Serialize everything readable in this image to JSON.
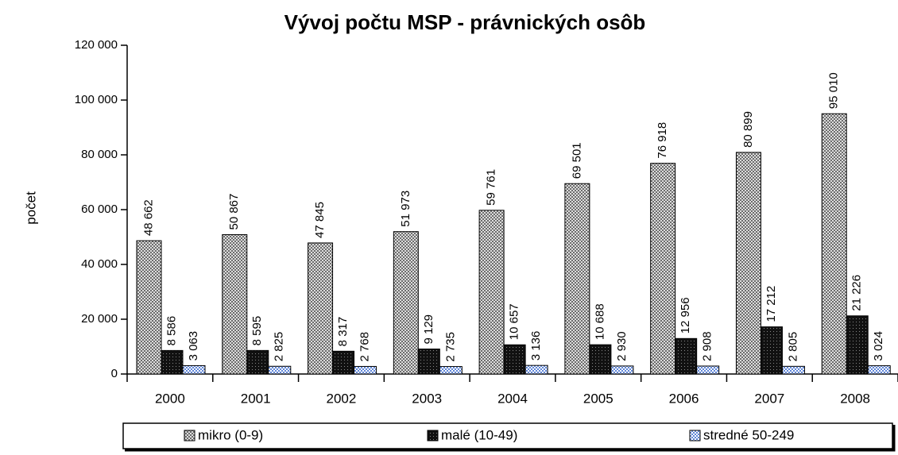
{
  "chart_data": {
    "type": "bar",
    "title": "Vývoj počtu MSP - právnických osôb",
    "y_label": "počet",
    "categories": [
      "2000",
      "2001",
      "2002",
      "2003",
      "2004",
      "2005",
      "2006",
      "2007",
      "2008"
    ],
    "series": [
      {
        "name": "mikro (0-9)",
        "color": "#cfcfcf",
        "values": [
          48662,
          50867,
          47845,
          51973,
          59761,
          69501,
          76918,
          80899,
          95010
        ],
        "value_labels": [
          "48 662",
          "50 867",
          "47 845",
          "51 973",
          "59 761",
          "69 501",
          "76 918",
          "80 899",
          "95 010"
        ]
      },
      {
        "name": "malé (10-49)",
        "color": "#111111",
        "values": [
          8586,
          8595,
          8317,
          9129,
          10657,
          10688,
          12956,
          17212,
          21226
        ],
        "value_labels": [
          "8 586",
          "8 595",
          "8 317",
          "9 129",
          "10 657",
          "10 688",
          "12 956",
          "17 212",
          "21 226"
        ]
      },
      {
        "name": "stredné 50-249",
        "color": "#5f86d8",
        "values": [
          3063,
          2825,
          2768,
          2735,
          3136,
          2930,
          2908,
          2805,
          3024
        ],
        "value_labels": [
          "3 063",
          "2 825",
          "2 768",
          "2 735",
          "3 136",
          "2 930",
          "2 908",
          "2 805",
          "3 024"
        ]
      }
    ],
    "ylim": [
      0,
      120000
    ],
    "yticks": [
      0,
      {
        "value": 20000,
        "label": "20 000"
      },
      {
        "value": 40000,
        "label": "40 000"
      },
      {
        "value": 60000,
        "label": "60 000"
      },
      {
        "value": 80000,
        "label": "80 000"
      },
      {
        "value": 100000,
        "label": "100 000"
      },
      {
        "value": 120000,
        "label": "120 000"
      }
    ],
    "legend": "bottom"
  }
}
